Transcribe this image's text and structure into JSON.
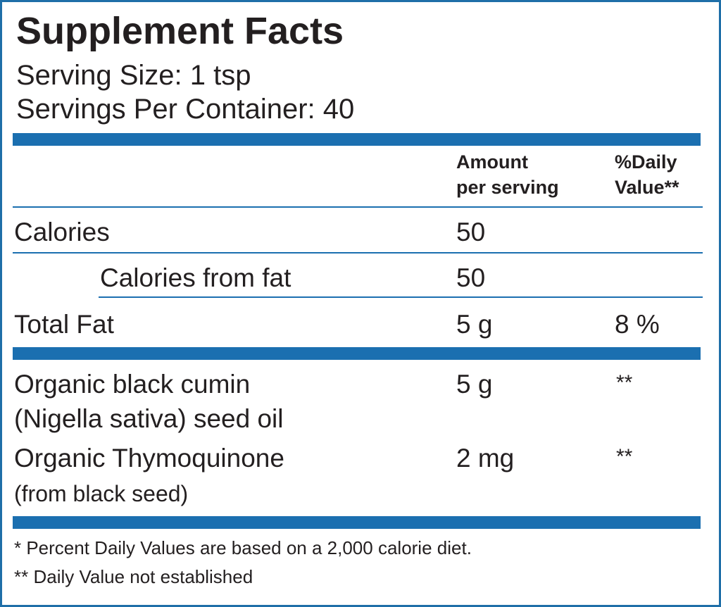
{
  "header": {
    "title": "Supplement Facts",
    "serving_size": "Serving Size: 1 tsp",
    "servings_per_container": "Servings Per Container: 40"
  },
  "table": {
    "columns": [
      [
        "Amount",
        "per serving"
      ],
      [
        "%Daily",
        "Value**"
      ]
    ],
    "rows": [
      {
        "label": [
          "Calories"
        ],
        "amount": "50"
      },
      {
        "label": [
          "Calories from fat"
        ],
        "amount": "50"
      },
      {
        "label": [
          "Total Fat"
        ],
        "amount": "5 g",
        "daily_value": "8 %"
      }
    ],
    "ingredients": [
      {
        "label": [
          "Organic black cumin",
          "(Nigella sativa) seed oil"
        ],
        "amount": "5 g",
        "daily_value": "**"
      },
      {
        "label": [
          "Organic Thymoquinone",
          "(from black seed)"
        ],
        "amount": "2 mg",
        "daily_value": "**"
      }
    ]
  },
  "footnotes": [
    "* Percent Daily Values are based on a 2,000 calorie diet.",
    "** Daily Value not established"
  ]
}
